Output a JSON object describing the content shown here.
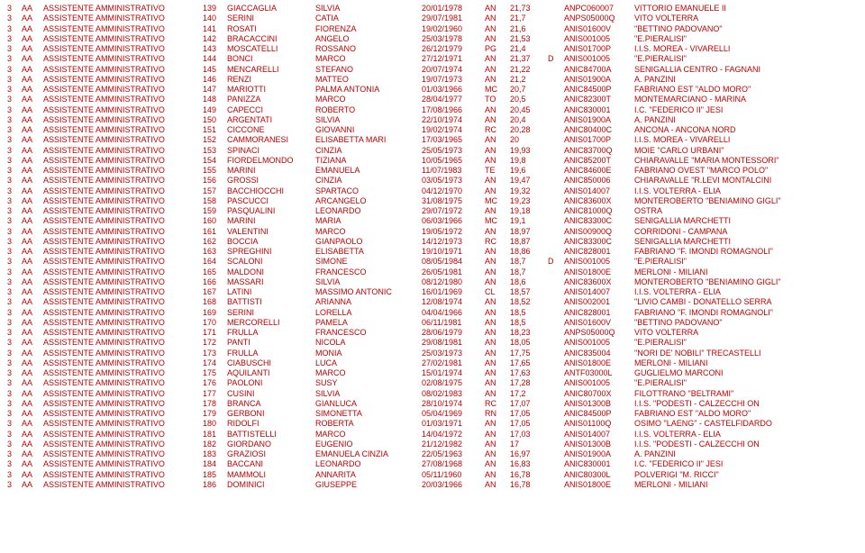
{
  "rows": [
    {
      "n": "139",
      "ln": "GIACCAGLIA",
      "fn": "SILVIA",
      "d": "20/01/1978",
      "p": "AN",
      "s": "21,73",
      "f": "",
      "code": "ANPC060007",
      "loc": "VITTORIO EMANUELE II"
    },
    {
      "n": "140",
      "ln": "SERINI",
      "fn": "CATIA",
      "d": "29/07/1981",
      "p": "AN",
      "s": "21,7",
      "f": "",
      "code": "ANPS05000Q",
      "loc": "VITO VOLTERRA"
    },
    {
      "n": "141",
      "ln": "ROSATI",
      "fn": "FIORENZA",
      "d": "19/02/1960",
      "p": "AN",
      "s": "21,6",
      "f": "",
      "code": "ANIS01600V",
      "loc": "\"BETTINO PADOVANO\""
    },
    {
      "n": "142",
      "ln": "BRACACCINI",
      "fn": "ANGELO",
      "d": "25/03/1978",
      "p": "AN",
      "s": "21,53",
      "f": "",
      "code": "ANIS001005",
      "loc": "\"E.PIERALISI\""
    },
    {
      "n": "143",
      "ln": "MOSCATELLI",
      "fn": "ROSSANO",
      "d": "26/12/1979",
      "p": "PG",
      "s": "21,4",
      "f": "",
      "code": "ANIS01700P",
      "loc": "I.I.S. MOREA - VIVARELLI"
    },
    {
      "n": "144",
      "ln": "BONCI",
      "fn": "MARCO",
      "d": "27/12/1971",
      "p": "AN",
      "s": "21,37",
      "f": "D",
      "code": "ANIS001005",
      "loc": "\"E.PIERALISI\""
    },
    {
      "n": "145",
      "ln": "MENCARELLI",
      "fn": "STEFANO",
      "d": "20/07/1974",
      "p": "AN",
      "s": "21,22",
      "f": "",
      "code": "ANIC84700A",
      "loc": "SENIGALLIA CENTRO - FAGNANI"
    },
    {
      "n": "146",
      "ln": "RENZI",
      "fn": "MATTEO",
      "d": "19/07/1973",
      "p": "AN",
      "s": "21,2",
      "f": "",
      "code": "ANIS01900A",
      "loc": "A. PANZINI"
    },
    {
      "n": "147",
      "ln": "MARIOTTI",
      "fn": "PALMA ANTONIA",
      "d": "01/03/1966",
      "p": "MC",
      "s": "20,7",
      "f": "",
      "code": "ANIC84500P",
      "loc": "FABRIANO EST \"ALDO MORO\""
    },
    {
      "n": "148",
      "ln": "PANIZZA",
      "fn": "MARCO",
      "d": "28/04/1977",
      "p": "TO",
      "s": "20,5",
      "f": "",
      "code": "ANIC82300T",
      "loc": "MONTEMARCIANO - MARINA"
    },
    {
      "n": "149",
      "ln": "CAPECCI",
      "fn": "ROBERTO",
      "d": "17/08/1966",
      "p": "AN",
      "s": "20,45",
      "f": "",
      "code": "ANIC830001",
      "loc": "I.C. \"FEDERICO II\" JESI"
    },
    {
      "n": "150",
      "ln": "ARGENTATI",
      "fn": "SILVIA",
      "d": "22/10/1974",
      "p": "AN",
      "s": "20,4",
      "f": "",
      "code": "ANIS01900A",
      "loc": "A. PANZINI"
    },
    {
      "n": "151",
      "ln": "CICCONE",
      "fn": "GIOVANNI",
      "d": "19/02/1974",
      "p": "RC",
      "s": "20,28",
      "f": "",
      "code": "ANIC80400C",
      "loc": "   ANCONA - ANCONA NORD"
    },
    {
      "n": "152",
      "ln": "CAMMORANESI",
      "fn": "ELISABETTA MARI",
      "d": "17/03/1965",
      "p": "AN",
      "s": "20",
      "f": "",
      "code": "ANIS01700P",
      "loc": "I.I.S. MOREA - VIVARELLI"
    },
    {
      "n": "153",
      "ln": "SPINACI",
      "fn": "CINZIA",
      "d": "25/05/1973",
      "p": "AN",
      "s": "19,93",
      "f": "",
      "code": "ANIC83700Q",
      "loc": "MOIE \"CARLO URBANI\""
    },
    {
      "n": "154",
      "ln": "FIORDELMONDO",
      "fn": "TIZIANA",
      "d": "10/05/1965",
      "p": "AN",
      "s": "19,8",
      "f": "",
      "code": "ANIC85200T",
      "loc": "CHIARAVALLE \"MARIA MONTESSORI\""
    },
    {
      "n": "155",
      "ln": "MARINI",
      "fn": "EMANUELA",
      "d": "11/07/1983",
      "p": "TE",
      "s": "19,6",
      "f": "",
      "code": "ANIC84600E",
      "loc": "FABRIANO OVEST \"MARCO POLO\""
    },
    {
      "n": "156",
      "ln": "GROSSI",
      "fn": "CINZIA",
      "d": "03/05/1973",
      "p": "AN",
      "s": "19,47",
      "f": "",
      "code": "ANIC850006",
      "loc": "CHIARAVALLE \"R.LEVI MONTALCINI"
    },
    {
      "n": "157",
      "ln": "BACCHIOCCHI",
      "fn": "SPARTACO",
      "d": "04/12/1970",
      "p": "AN",
      "s": "19,32",
      "f": "",
      "code": "ANIS014007",
      "loc": "I.I.S. VOLTERRA - ELIA"
    },
    {
      "n": "158",
      "ln": "PASCUCCI",
      "fn": "ARCANGELO",
      "d": "31/08/1975",
      "p": "MC",
      "s": "19,23",
      "f": "",
      "code": "ANIC83600X",
      "loc": "MONTEROBERTO \"BENIAMINO GIGLI\""
    },
    {
      "n": "159",
      "ln": "PASQUALINI",
      "fn": "LEONARDO",
      "d": "29/07/1972",
      "p": "AN",
      "s": "19,18",
      "f": "",
      "code": "ANIC81000Q",
      "loc": "OSTRA"
    },
    {
      "n": "160",
      "ln": "MARINI",
      "fn": "MARIA",
      "d": "06/03/1966",
      "p": "MC",
      "s": "19,1",
      "f": "",
      "code": "ANIC83300C",
      "loc": "SENIGALLIA MARCHETTI"
    },
    {
      "n": "161",
      "ln": "VALENTINI",
      "fn": "MARCO",
      "d": "19/05/1972",
      "p": "AN",
      "s": "18,97",
      "f": "",
      "code": "ANIS00900Q",
      "loc": "CORRIDONI - CAMPANA"
    },
    {
      "n": "162",
      "ln": "BOCCIA",
      "fn": "GIANPAOLO",
      "d": "14/12/1973",
      "p": "RC",
      "s": "18,87",
      "f": "",
      "code": "ANIC83300C",
      "loc": "SENIGALLIA MARCHETTI"
    },
    {
      "n": "163",
      "ln": "SPREGHINI",
      "fn": "ELISABETTA",
      "d": "19/10/1971",
      "p": "AN",
      "s": "18,86",
      "f": "",
      "code": "ANIC828001",
      "loc": "FABRIANO \"F. IMONDI ROMAGNOLI\""
    },
    {
      "n": "164",
      "ln": "SCALONI",
      "fn": "SIMONE",
      "d": "08/05/1984",
      "p": "AN",
      "s": "18,7",
      "f": "D",
      "code": "ANIS001005",
      "loc": "\"E.PIERALISI\""
    },
    {
      "n": "165",
      "ln": "MALDONI",
      "fn": "FRANCESCO",
      "d": "26/05/1981",
      "p": "AN",
      "s": "18,7",
      "f": "",
      "code": "ANIS01800E",
      "loc": "MERLONI - MILIANI"
    },
    {
      "n": "166",
      "ln": "MASSARI",
      "fn": "SILVIA",
      "d": "08/12/1980",
      "p": "AN",
      "s": "18,6",
      "f": "",
      "code": "ANIC83600X",
      "loc": "MONTEROBERTO \"BENIAMINO GIGLI\""
    },
    {
      "n": "167",
      "ln": "LATINI",
      "fn": "MASSIMO ANTONIC",
      "d": "16/01/1969",
      "p": "CL",
      "s": "18,57",
      "f": "",
      "code": "ANIS014007",
      "loc": "I.I.S. VOLTERRA - ELIA"
    },
    {
      "n": "168",
      "ln": "BATTISTI",
      "fn": "ARIANNA",
      "d": "12/08/1974",
      "p": "AN",
      "s": "18,52",
      "f": "",
      "code": "ANIS002001",
      "loc": "\"LIVIO CAMBI - DONATELLO SERRA"
    },
    {
      "n": "169",
      "ln": "SERINI",
      "fn": "LORELLA",
      "d": "04/04/1966",
      "p": "AN",
      "s": "18,5",
      "f": "",
      "code": "ANIC828001",
      "loc": "FABRIANO \"F. IMONDI ROMAGNOLI\""
    },
    {
      "n": "170",
      "ln": "MERCORELLI",
      "fn": "PAMELA",
      "d": "06/11/1981",
      "p": "AN",
      "s": "18,5",
      "f": "",
      "code": "ANIS01600V",
      "loc": "\"BETTINO PADOVANO\""
    },
    {
      "n": "171",
      "ln": "FRULLA",
      "fn": "FRANCESCO",
      "d": "28/06/1979",
      "p": "AN",
      "s": "18,23",
      "f": "",
      "code": "ANPS05000Q",
      "loc": "VITO VOLTERRA"
    },
    {
      "n": "172",
      "ln": "PANTI",
      "fn": "NICOLA",
      "d": "29/08/1981",
      "p": "AN",
      "s": "18,05",
      "f": "",
      "code": "ANIS001005",
      "loc": "\"E.PIERALISI\""
    },
    {
      "n": "173",
      "ln": "FRULLA",
      "fn": "MONIA",
      "d": "25/03/1973",
      "p": "AN",
      "s": "17,75",
      "f": "",
      "code": "ANIC835004",
      "loc": "\"NORI DE' NOBILI\" TRECASTELLI"
    },
    {
      "n": "174",
      "ln": "CIABUSCHI",
      "fn": "LUCA",
      "d": "27/02/1981",
      "p": "AN",
      "s": "17,65",
      "f": "",
      "code": "ANIS01800E",
      "loc": "MERLONI - MILIANI"
    },
    {
      "n": "175",
      "ln": "AQUILANTI",
      "fn": "MARCO",
      "d": "15/01/1974",
      "p": "AN",
      "s": "17,63",
      "f": "",
      "code": "ANTF03000L",
      "loc": "GUGLIELMO MARCONI"
    },
    {
      "n": "176",
      "ln": "PAOLONI",
      "fn": "SUSY",
      "d": "02/08/1975",
      "p": "AN",
      "s": "17,28",
      "f": "",
      "code": "ANIS001005",
      "loc": "\"E.PIERALISI\""
    },
    {
      "n": "177",
      "ln": "CUSINI",
      "fn": "SILVIA",
      "d": "08/02/1983",
      "p": "AN",
      "s": "17,2",
      "f": "",
      "code": "ANIC80700X",
      "loc": "FILOTTRANO \"BELTRAMI\""
    },
    {
      "n": "178",
      "ln": "BRANCA",
      "fn": "GIANLUCA",
      "d": "28/10/1974",
      "p": "RC",
      "s": "17,07",
      "f": "",
      "code": "ANIS01300B",
      "loc": "I.I.S. \"PODESTI - CALZECCHI ON"
    },
    {
      "n": "179",
      "ln": "GERBONI",
      "fn": "SIMONETTA",
      "d": "05/04/1969",
      "p": "RN",
      "s": "17,05",
      "f": "",
      "code": "ANIC84500P",
      "loc": "FABRIANO EST \"ALDO MORO\""
    },
    {
      "n": "180",
      "ln": "RIDOLFI",
      "fn": "ROBERTA",
      "d": "01/03/1971",
      "p": "AN",
      "s": "17,05",
      "f": "",
      "code": "ANIS01100Q",
      "loc": "OSIMO \"LAENG\" - CASTELFIDARDO"
    },
    {
      "n": "181",
      "ln": "BATTISTELLI",
      "fn": "MARCO",
      "d": "14/04/1972",
      "p": "AN",
      "s": "17,03",
      "f": "",
      "code": "ANIS014007",
      "loc": "I.I.S. VOLTERRA - ELIA"
    },
    {
      "n": "182",
      "ln": "GIORDANO",
      "fn": "EUGENIO",
      "d": "21/12/1982",
      "p": "AN",
      "s": "17",
      "f": "",
      "code": "ANIS01300B",
      "loc": "I.I.S. \"PODESTI - CALZECCHI ON"
    },
    {
      "n": "183",
      "ln": "GRAZIOSI",
      "fn": "EMANUELA CINZIA",
      "d": "22/05/1963",
      "p": "AN",
      "s": "16,97",
      "f": "",
      "code": "ANIS01900A",
      "loc": "A. PANZINI"
    },
    {
      "n": "184",
      "ln": "BACCANI",
      "fn": "LEONARDO",
      "d": "27/08/1968",
      "p": "AN",
      "s": "16,83",
      "f": "",
      "code": "ANIC830001",
      "loc": "I.C. \"FEDERICO II\" JESI"
    },
    {
      "n": "185",
      "ln": "MAMMOLI",
      "fn": "ANNARITA",
      "d": "05/11/1960",
      "p": "AN",
      "s": "16,78",
      "f": "",
      "code": "ANIC80300L",
      "loc": "POLVERIGI \"M. RICCI\""
    },
    {
      "n": "186",
      "ln": "DOMINICI",
      "fn": "GIUSEPPE",
      "d": "20/03/1966",
      "p": "AN",
      "s": "16,78",
      "f": "",
      "code": "ANIS01800E",
      "loc": "MERLONI - MILIANI"
    }
  ],
  "fixed": {
    "col0": "3",
    "col1": "AA",
    "col2": "ASSISTENTE AMMINISTRATIVO"
  }
}
